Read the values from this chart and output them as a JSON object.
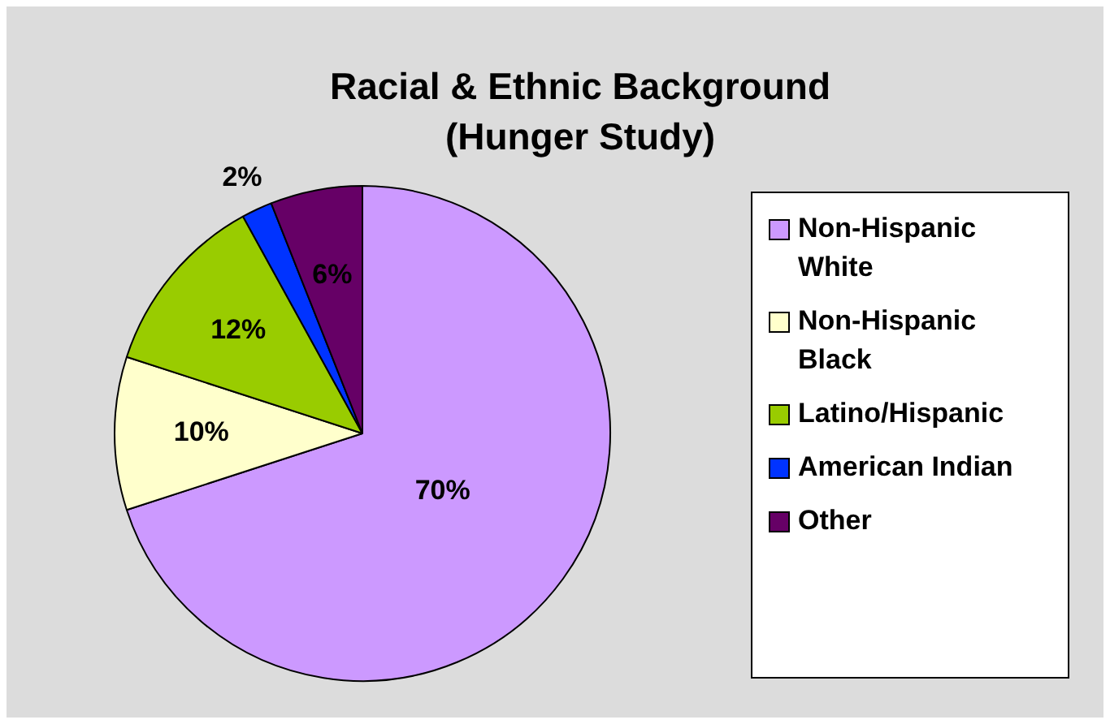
{
  "chart_data": {
    "type": "pie",
    "title": "Racial & Ethnic Background\n(Hunger Study)",
    "categories": [
      "Non-Hispanic White",
      "Non-Hispanic Black",
      "Latino/Hispanic",
      "American Indian",
      "Other"
    ],
    "values": [
      70,
      10,
      12,
      2,
      6
    ],
    "colors": [
      "#cc99ff",
      "#ffffcc",
      "#99cc00",
      "#0033ff",
      "#660066"
    ],
    "value_labels": [
      "70%",
      "10%",
      "12%",
      "2%",
      "6%"
    ],
    "legend": "right"
  }
}
